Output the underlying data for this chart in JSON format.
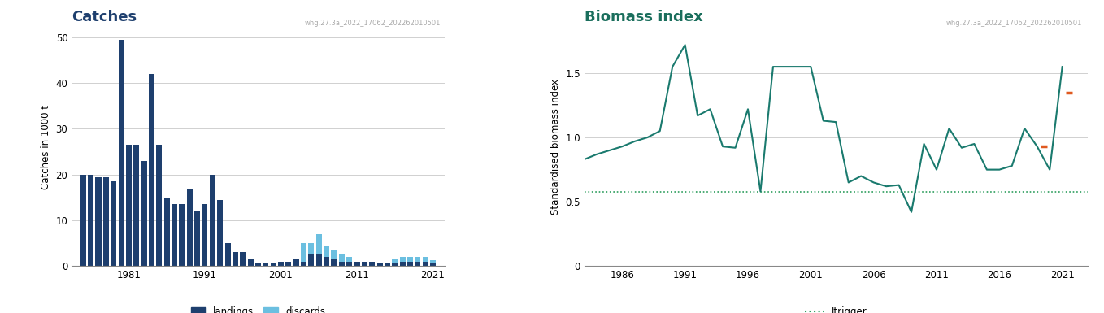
{
  "catches_title": "Catches",
  "catches_ylabel": "Catches in 1000 t",
  "catches_watermark": "whg.27.3a_2022_17062_202262010501",
  "catches_ylim": [
    0,
    52
  ],
  "catches_yticks": [
    0,
    10,
    20,
    30,
    40,
    50
  ],
  "catches_xticks": [
    1981,
    1991,
    2001,
    2011,
    2021
  ],
  "landings_color": "#1e3f6e",
  "discards_color": "#6bbfe0",
  "biomass_title": "Biomass index",
  "biomass_ylabel": "Standardised biomass index",
  "biomass_watermark": "whg.27.3a_2022_17062_202262010501",
  "biomass_ylim": [
    0,
    1.85
  ],
  "biomass_yticks": [
    0,
    0.5,
    1.0,
    1.5
  ],
  "biomass_xticks": [
    1986,
    1991,
    1996,
    2001,
    2006,
    2011,
    2016,
    2021
  ],
  "itrigger_value": 0.58,
  "itrigger_color": "#2e9e5e",
  "biomass_line_color": "#1a7a6e",
  "orange_color": "#e05a20"
}
